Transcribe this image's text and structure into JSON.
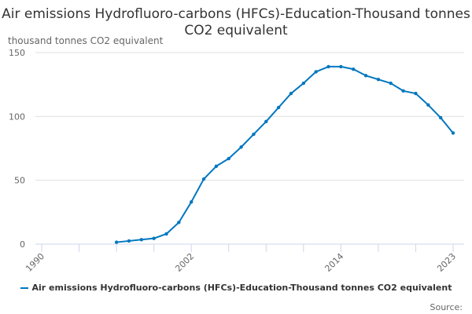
{
  "chart_data": {
    "type": "line",
    "title": "Air emissions Hydrofluoro-carbons (HFCs)-Education-Thousand tonnes CO2 equivalent",
    "ylabel": "thousand tonnes CO2 equivalent",
    "xlabel": "",
    "xlim": [
      1990,
      2023
    ],
    "ylim": [
      0,
      150
    ],
    "x_tick_labels": [
      "1990",
      "2002",
      "2014",
      "2023"
    ],
    "y_tick_labels": [
      "0",
      "50",
      "100",
      "150"
    ],
    "grid": true,
    "legend_position": "bottom",
    "series": [
      {
        "name": "Air emissions Hydrofluoro-carbons (HFCs)-Education-Thousand tonnes CO2 equivalent",
        "color": "#0077c0",
        "x": [
          1996,
          1997,
          1998,
          1999,
          2000,
          2001,
          2002,
          2003,
          2004,
          2005,
          2006,
          2007,
          2008,
          2009,
          2010,
          2011,
          2012,
          2013,
          2014,
          2015,
          2016,
          2017,
          2018,
          2019,
          2020,
          2021,
          2022,
          2023
        ],
        "values": [
          1.5,
          2.5,
          3.5,
          4.5,
          8,
          17,
          33,
          51,
          61,
          67,
          76,
          86,
          96,
          107,
          118,
          126,
          135,
          139,
          139,
          137,
          132,
          129,
          126,
          120,
          118,
          109,
          99,
          87
        ]
      }
    ]
  },
  "source_label": "Source:"
}
